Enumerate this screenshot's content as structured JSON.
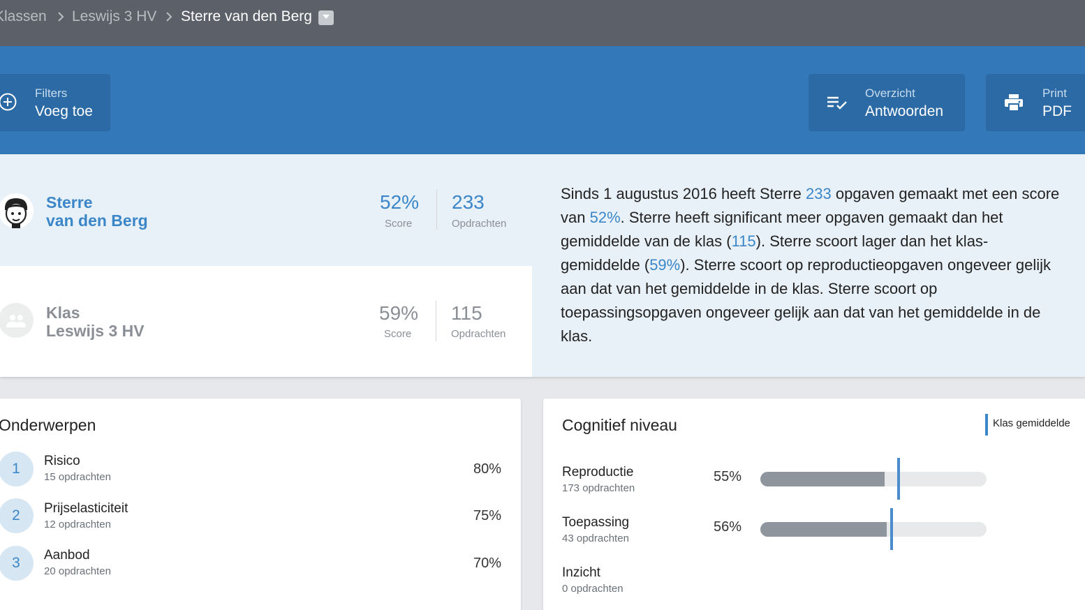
{
  "breadcrumb": {
    "items": [
      "Klassen",
      "Leswijs 3 HV",
      "Sterre van den Berg"
    ],
    "dropdown_icon": "caret-down-icon"
  },
  "actions": {
    "filters": {
      "line1": "Filters",
      "line2": "Voeg toe",
      "icon": "plus-circle-icon"
    },
    "overzicht": {
      "line1": "Overzicht",
      "line2": "Antwoorden",
      "icon": "checklist-icon"
    },
    "print": {
      "line1": "Print",
      "line2": "PDF",
      "icon": "printer-icon"
    }
  },
  "student": {
    "name_line1": "Sterre",
    "name_line2": "van den Berg",
    "score": "52%",
    "score_label": "Score",
    "count": "233",
    "count_label": "Opdrachten",
    "icon": "student-avatar-icon"
  },
  "klas": {
    "name_line1": "Klas",
    "name_line2": "Leswijs 3 HV",
    "score": "59%",
    "score_label": "Score",
    "count": "115",
    "count_label": "Opdrachten",
    "icon": "group-icon"
  },
  "description": {
    "p1": "Sinds 1 augustus 2016 heeft Sterre ",
    "v1": "233",
    "p2": " opgaven gemaakt met een score van ",
    "v2": "52%",
    "p3": ". Sterre heeft significant meer opgaven gemaakt dan het gemiddelde van de klas (",
    "v3": "115",
    "p4": "). Sterre scoort lager dan het klas-gemiddelde (",
    "v4": "59%",
    "p5": "). Sterre scoort op reproductieopgaven ongeveer gelijk aan dat van het gemiddelde in de klas. Sterre scoort op toepassingsopgaven ongeveer gelijk aan dat van het gemiddelde in de klas."
  },
  "onderwerpen": {
    "title": "Onderwerpen",
    "items": [
      {
        "num": "1",
        "name": "Risico",
        "sub": "15 opdrachten",
        "pct": "80%"
      },
      {
        "num": "2",
        "name": "Prijselasticiteit",
        "sub": "12 opdrachten",
        "pct": "75%"
      },
      {
        "num": "3",
        "name": "Aanbod",
        "sub": "20 opdrachten",
        "pct": "70%"
      }
    ]
  },
  "cognitief": {
    "title": "Cognitief niveau",
    "legend": "Klas gemiddelde",
    "colors": {
      "fill": "#8e959c",
      "marker": "#4a8ccc"
    },
    "items": [
      {
        "name": "Reproductie",
        "sub": "173 opdrachten",
        "pct": "55%",
        "value": 55,
        "class_avg": 61
      },
      {
        "name": "Toepassing",
        "sub": "43 opdrachten",
        "pct": "56%",
        "value": 56,
        "class_avg": 58
      },
      {
        "name": "Inzicht",
        "sub": "0 opdrachten",
        "pct": "",
        "value": null,
        "class_avg": null
      }
    ]
  }
}
